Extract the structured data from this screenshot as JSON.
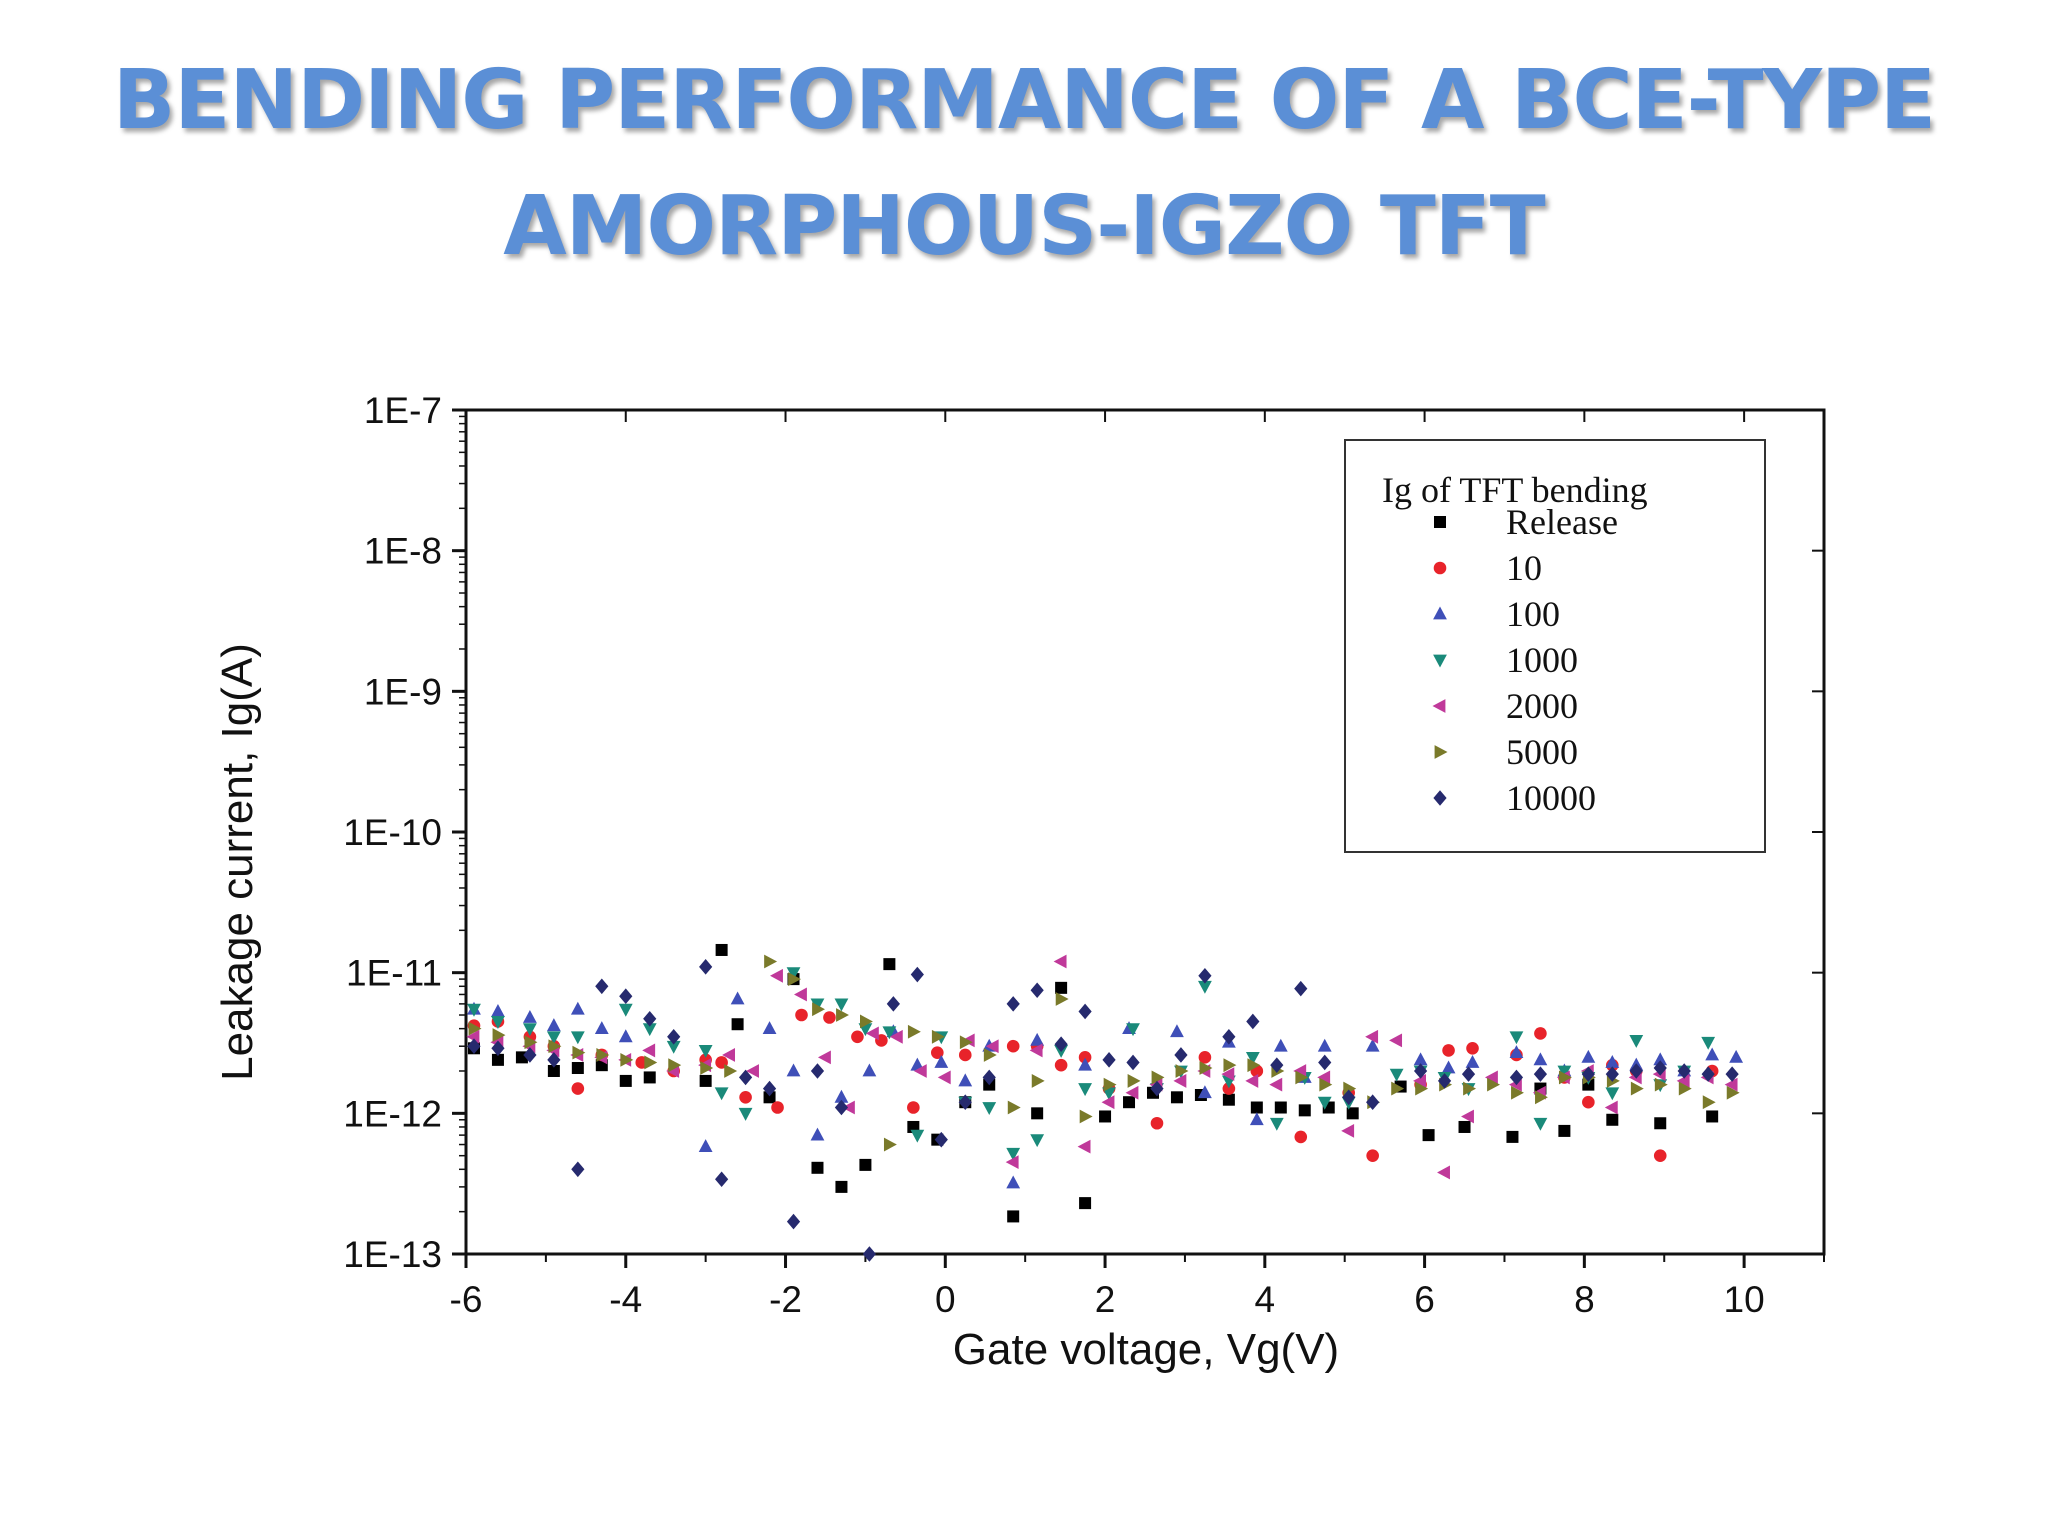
{
  "slide": {
    "title_line1": "BENDING PERFORMANCE OF A BCE-TYPE",
    "title_line2": "AMORPHOUS-IGZO TFT"
  },
  "chart_data": {
    "type": "scatter",
    "xlabel": "Gate voltage, Vg(V)",
    "ylabel": "Leakage current, Ig(A)",
    "xlim": [
      -6,
      11
    ],
    "ylim_log10": [
      -13,
      -7
    ],
    "y_scale": "log",
    "x_ticks": [
      -6,
      -4,
      -2,
      0,
      2,
      4,
      6,
      8,
      10
    ],
    "x_tick_labels": [
      "-6",
      "-4",
      "-2",
      "0",
      "2",
      "4",
      "6",
      "8",
      "10"
    ],
    "y_ticks_log10": [
      -7,
      -8,
      -9,
      -10,
      -11,
      -12,
      -13
    ],
    "y_tick_labels": [
      "1E-7",
      "1E-8",
      "1E-9",
      "1E-10",
      "1E-11",
      "1E-12",
      "1E-13"
    ],
    "grid": false,
    "legend": {
      "title": "Ig of TFT bending",
      "placement": "top-right"
    },
    "series": [
      {
        "name": "Release",
        "marker": "square",
        "color": "#000000",
        "x": [
          -5.9,
          -5.6,
          -5.3,
          -4.9,
          -4.6,
          -4.3,
          -4.0,
          -3.7,
          -3.0,
          -2.8,
          -2.6,
          -2.2,
          -1.9,
          -1.6,
          -1.3,
          -1.0,
          -0.7,
          -0.4,
          -0.1,
          0.25,
          0.55,
          0.85,
          1.15,
          1.45,
          1.75,
          2.0,
          2.3,
          2.6,
          2.9,
          3.2,
          3.55,
          3.9,
          4.2,
          4.5,
          4.8,
          5.1,
          5.7,
          6.05,
          6.5,
          7.1,
          7.45,
          7.75,
          8.05,
          8.35,
          8.95,
          9.6
        ],
        "y": [
          2.9e-12,
          2.4e-12,
          2.5e-12,
          2e-12,
          2.1e-12,
          2.2e-12,
          1.7e-12,
          1.8e-12,
          1.7e-12,
          1.45e-11,
          4.3e-12,
          1.3e-12,
          9e-12,
          4.1e-13,
          3e-13,
          4.3e-13,
          1.15e-11,
          8e-13,
          6.5e-13,
          1.2e-12,
          1.6e-12,
          1.85e-13,
          1e-12,
          7.8e-12,
          2.3e-13,
          9.5e-13,
          1.2e-12,
          1.4e-12,
          1.3e-12,
          1.35e-12,
          1.25e-12,
          1.1e-12,
          1.1e-12,
          1.05e-12,
          1.1e-12,
          1e-12,
          1.55e-12,
          7e-13,
          8e-13,
          6.8e-13,
          1.5e-12,
          7.5e-13,
          1.6e-12,
          9e-13,
          8.5e-13,
          9.5e-13
        ]
      },
      {
        "name": "10",
        "marker": "circle",
        "color": "#e8232a",
        "x": [
          -5.9,
          -5.6,
          -5.2,
          -4.9,
          -4.6,
          -4.3,
          -3.8,
          -3.4,
          -3.0,
          -2.8,
          -2.5,
          -2.1,
          -1.8,
          -1.45,
          -1.1,
          -0.8,
          -0.4,
          -0.1,
          0.25,
          0.85,
          1.15,
          1.45,
          1.75,
          2.05,
          2.65,
          3.25,
          3.55,
          3.9,
          4.45,
          5.05,
          5.35,
          5.95,
          6.3,
          6.6,
          7.15,
          7.45,
          7.75,
          8.05,
          8.35,
          8.65,
          8.95,
          9.6
        ],
        "y": [
          4.2e-12,
          4.5e-12,
          3.5e-12,
          3e-12,
          1.5e-12,
          2.6e-12,
          2.3e-12,
          2e-12,
          2.4e-12,
          2.3e-12,
          1.3e-12,
          1.1e-12,
          5e-12,
          4.8e-12,
          3.5e-12,
          3.3e-12,
          1.1e-12,
          2.7e-12,
          2.6e-12,
          3e-12,
          3e-12,
          2.2e-12,
          2.5e-12,
          1.5e-12,
          8.5e-13,
          2.5e-12,
          1.5e-12,
          2e-12,
          6.8e-13,
          1.4e-12,
          5e-13,
          1.6e-12,
          2.8e-12,
          2.9e-12,
          2.6e-12,
          3.7e-12,
          1.8e-12,
          1.2e-12,
          2.2e-12,
          2e-12,
          5e-13,
          2e-12
        ]
      },
      {
        "name": "100",
        "marker": "triangle-up",
        "color": "#3f4fb8",
        "x": [
          -5.9,
          -5.6,
          -5.2,
          -4.9,
          -4.6,
          -4.3,
          -4.0,
          -3.0,
          -2.6,
          -2.2,
          -1.9,
          -1.6,
          -1.3,
          -0.95,
          -0.65,
          -0.35,
          -0.05,
          0.25,
          0.55,
          0.85,
          1.15,
          1.75,
          2.3,
          2.9,
          3.25,
          3.55,
          3.9,
          4.2,
          4.5,
          4.75,
          5.35,
          5.95,
          6.3,
          6.6,
          7.15,
          7.45,
          7.75,
          8.05,
          8.35,
          8.65,
          8.95,
          9.25,
          9.6,
          9.9
        ],
        "y": [
          5.5e-12,
          5.3e-12,
          4.8e-12,
          4.2e-12,
          5.5e-12,
          4e-12,
          3.5e-12,
          5.8e-13,
          6.5e-12,
          4e-12,
          2e-12,
          7e-13,
          1.3e-12,
          2e-12,
          3.8e-12,
          2.2e-12,
          2.3e-12,
          1.7e-12,
          3e-12,
          3.2e-13,
          3.3e-12,
          2.2e-12,
          4e-12,
          3.8e-12,
          1.4e-12,
          3.2e-12,
          9e-13,
          3e-12,
          1.8e-12,
          3e-12,
          3e-12,
          2.4e-12,
          2.1e-12,
          2.3e-12,
          2.7e-12,
          2.4e-12,
          2e-12,
          2.5e-12,
          2.3e-12,
          2.2e-12,
          2.4e-12,
          2e-12,
          2.6e-12,
          2.5e-12
        ]
      },
      {
        "name": "1000",
        "marker": "triangle-down",
        "color": "#1a8a7a",
        "x": [
          -5.9,
          -5.6,
          -5.2,
          -4.9,
          -4.6,
          -4.0,
          -3.7,
          -3.4,
          -3.0,
          -2.8,
          -2.5,
          -1.9,
          -1.6,
          -1.3,
          -1.0,
          -0.7,
          -0.35,
          -0.05,
          0.25,
          0.55,
          0.85,
          1.15,
          1.45,
          1.75,
          2.05,
          2.35,
          2.65,
          2.95,
          3.25,
          3.55,
          3.85,
          4.15,
          4.5,
          4.75,
          5.05,
          5.65,
          5.95,
          6.25,
          6.55,
          7.15,
          7.45,
          7.75,
          8.05,
          8.35,
          8.65,
          8.95,
          9.25,
          9.55
        ],
        "y": [
          5.5e-12,
          4.5e-12,
          4e-12,
          3.5e-12,
          3.5e-12,
          5.5e-12,
          4e-12,
          3e-12,
          2.8e-12,
          1.4e-12,
          1e-12,
          1e-11,
          6e-12,
          6e-12,
          4e-12,
          3.8e-12,
          7e-13,
          3.5e-12,
          1.2e-12,
          1.1e-12,
          5.2e-13,
          6.5e-13,
          2.8e-12,
          1.5e-12,
          1.4e-12,
          4e-12,
          1.5e-12,
          2e-12,
          8e-12,
          1.7e-12,
          2.5e-12,
          8.5e-13,
          1.8e-12,
          1.2e-12,
          1.2e-12,
          1.9e-12,
          2e-12,
          1.8e-12,
          1.5e-12,
          3.5e-12,
          8.5e-13,
          2e-12,
          1.8e-12,
          1.4e-12,
          3.3e-12,
          1.6e-12,
          2e-12,
          3.2e-12
        ]
      },
      {
        "name": "2000",
        "marker": "triangle-left",
        "color": "#c0399a",
        "x": [
          -5.9,
          -5.6,
          -5.2,
          -4.9,
          -4.6,
          -4.3,
          -4.0,
          -3.7,
          -3.4,
          -3.0,
          -2.7,
          -2.4,
          -2.1,
          -1.8,
          -1.5,
          -1.2,
          -0.9,
          -0.6,
          -0.3,
          0.0,
          0.3,
          0.6,
          0.85,
          1.15,
          1.45,
          1.75,
          2.05,
          2.35,
          2.65,
          2.95,
          3.25,
          3.55,
          3.85,
          4.15,
          4.45,
          4.75,
          5.05,
          5.35,
          5.65,
          5.95,
          6.25,
          6.55,
          6.85,
          7.15,
          7.45,
          7.75,
          8.05,
          8.35,
          8.65,
          8.95,
          9.25,
          9.55,
          9.85
        ],
        "y": [
          3.5e-12,
          3.2e-12,
          3e-12,
          2.8e-12,
          2.6e-12,
          2.5e-12,
          2.4e-12,
          2.8e-12,
          2e-12,
          2.2e-12,
          2.6e-12,
          2e-12,
          9.5e-12,
          7e-12,
          2.5e-12,
          1.1e-12,
          3.7e-12,
          3.5e-12,
          2e-12,
          1.8e-12,
          3.3e-12,
          3e-12,
          4.5e-13,
          2.8e-12,
          1.2e-11,
          5.8e-13,
          1.2e-12,
          1.4e-12,
          1.6e-12,
          1.7e-12,
          2e-12,
          1.9e-12,
          1.7e-12,
          1.6e-12,
          2e-12,
          1.8e-12,
          7.5e-13,
          3.5e-12,
          3.3e-12,
          1.7e-12,
          3.8e-13,
          9.5e-13,
          1.8e-12,
          1.6e-12,
          1.4e-12,
          1.8e-12,
          2e-12,
          1.1e-12,
          1.8e-12,
          1.9e-12,
          1.7e-12,
          1.8e-12,
          1.6e-12
        ]
      },
      {
        "name": "5000",
        "marker": "triangle-right",
        "color": "#7a7a2a",
        "x": [
          -5.9,
          -5.6,
          -5.2,
          -4.9,
          -4.6,
          -4.3,
          -4.0,
          -3.7,
          -3.4,
          -3.0,
          -2.7,
          -2.2,
          -1.9,
          -1.6,
          -1.3,
          -1.0,
          -0.7,
          -0.4,
          -0.1,
          0.25,
          0.55,
          0.85,
          1.15,
          1.45,
          1.75,
          2.05,
          2.35,
          2.65,
          2.95,
          3.25,
          3.55,
          3.85,
          4.15,
          4.45,
          4.75,
          5.05,
          5.35,
          5.65,
          5.95,
          6.25,
          6.55,
          6.85,
          7.15,
          7.45,
          7.75,
          8.05,
          8.35,
          8.65,
          8.95,
          9.25,
          9.55,
          9.85
        ],
        "y": [
          4e-12,
          3.6e-12,
          3.2e-12,
          3e-12,
          2.7e-12,
          2.6e-12,
          2.4e-12,
          2.3e-12,
          2.2e-12,
          2.1e-12,
          2e-12,
          1.2e-11,
          9e-12,
          5.5e-12,
          5e-12,
          4.5e-12,
          6e-13,
          3.8e-12,
          3.5e-12,
          3.2e-12,
          2.6e-12,
          1.1e-12,
          1.7e-12,
          6.5e-12,
          9.5e-13,
          1.6e-12,
          1.7e-12,
          1.8e-12,
          2e-12,
          2.1e-12,
          2.2e-12,
          2.2e-12,
          2e-12,
          1.8e-12,
          1.6e-12,
          1.5e-12,
          1.2e-12,
          1.5e-12,
          1.5e-12,
          1.6e-12,
          1.5e-12,
          1.6e-12,
          1.4e-12,
          1.3e-12,
          1.8e-12,
          1.8e-12,
          1.7e-12,
          1.5e-12,
          1.6e-12,
          1.5e-12,
          1.2e-12,
          1.4e-12
        ]
      },
      {
        "name": "10000",
        "marker": "diamond",
        "color": "#262a6e",
        "x": [
          -5.9,
          -5.6,
          -5.2,
          -4.9,
          -4.6,
          -4.3,
          -4.0,
          -3.7,
          -3.4,
          -3.0,
          -2.8,
          -2.5,
          -2.2,
          -1.9,
          -1.6,
          -1.3,
          -0.95,
          -0.65,
          -0.35,
          -0.05,
          0.25,
          0.55,
          0.85,
          1.15,
          1.45,
          1.75,
          2.05,
          2.35,
          2.65,
          2.95,
          3.25,
          3.55,
          3.85,
          4.15,
          4.45,
          4.75,
          5.05,
          5.35,
          5.95,
          6.25,
          6.55,
          7.15,
          7.45,
          8.05,
          8.35,
          8.65,
          8.95,
          9.25,
          9.55,
          9.85
        ],
        "y": [
          3e-12,
          2.9e-12,
          2.6e-12,
          2.4e-12,
          4e-13,
          8e-12,
          6.8e-12,
          4.7e-12,
          3.5e-12,
          1.1e-11,
          3.4e-13,
          1.8e-12,
          1.5e-12,
          1.7e-13,
          2e-12,
          1.1e-12,
          1e-13,
          6e-12,
          9.7e-12,
          6.5e-13,
          1.2e-12,
          1.8e-12,
          6e-12,
          7.5e-12,
          3.1e-12,
          5.3e-12,
          2.4e-12,
          2.3e-12,
          1.5e-12,
          2.6e-12,
          9.5e-12,
          3.5e-12,
          4.5e-12,
          2.2e-12,
          7.7e-12,
          2.3e-12,
          1.3e-12,
          1.2e-12,
          2e-12,
          1.7e-12,
          1.9e-12,
          1.8e-12,
          1.9e-12,
          1.9e-12,
          1.9e-12,
          2e-12,
          2.1e-12,
          2e-12,
          1.9e-12,
          1.9e-12
        ]
      }
    ]
  }
}
